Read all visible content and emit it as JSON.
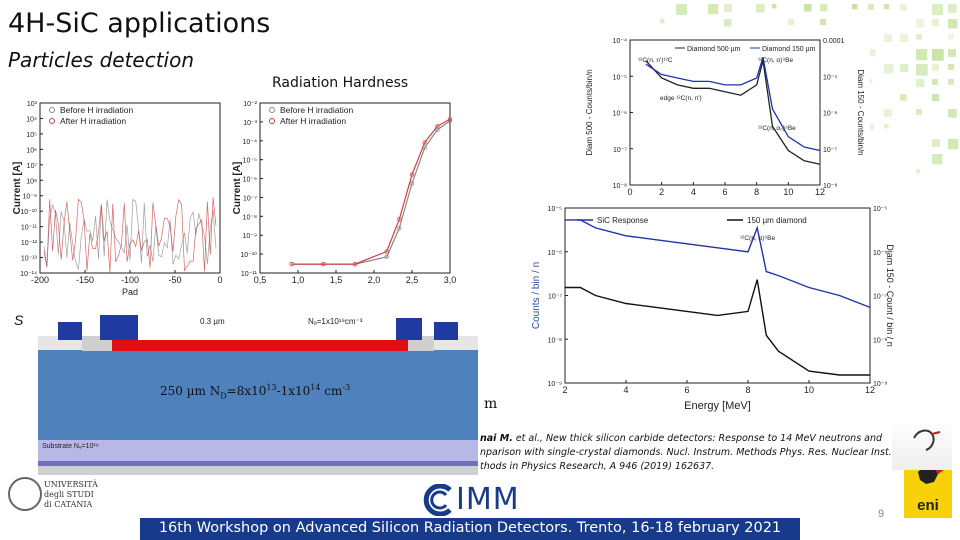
{
  "slide": {
    "title": "4H-SiC applications",
    "subtitle": "Particles detection",
    "radiation_label": "Radiation Hardness",
    "page_number": "9",
    "footer": "16th Workshop on Advanced Silicon Radiation Detectors. Trento, 16-18 february 2021",
    "s_fragment": "S",
    "m_fragment": "m",
    "reference_line1_author": "nai M.",
    "reference_line1_rest": " et al., New thick silicon carbide detectors: Response to 14 MeV neutrons and",
    "reference_line2": "nparison with single-crystal diamonds. Nucl. Instrum. Methods Phys. Res. Nuclear Inst. And",
    "reference_line3": "thods in Physics Research, A 946 (2019) 162637."
  },
  "device": {
    "epi_label": "250 µm N",
    "epi_sub": "D",
    "epi_mid": "=8x10",
    "epi_sup1": "13",
    "epi_dash": "-1x10",
    "epi_sup2": "14",
    "epi_unit": " cm",
    "epi_sup3": "-3",
    "thickness_label": "0.3 µm",
    "doping_label": "Nₐ=1x10¹⁹cm⁻³",
    "substrate_label": "Substrate Nₔ=10¹⁹"
  },
  "logos": {
    "unict_line1": "UNIVERSITÀ",
    "unict_line2": "degli STUDI",
    "unict_line3": "di CATANIA",
    "imm": "IMM",
    "eni": "eni"
  },
  "chart_data": [
    {
      "type": "line",
      "title": "",
      "xlabel": "Pad",
      "ylabel": "Current [A]",
      "xlim": [
        -220,
        0
      ],
      "ylog": true,
      "xticks": [
        "-200",
        "-150",
        "-100",
        "-50",
        "0"
      ],
      "yticks": [
        "10³",
        "10⁴",
        "10⁵",
        "10⁶",
        "10⁷",
        "10⁸",
        "10⁻⁹",
        "10⁻¹⁰",
        "10⁻¹¹",
        "10⁻¹²",
        "10⁻¹³",
        "10⁻¹⁴"
      ],
      "legend": [
        "Before H irradiation",
        "After H irradiation"
      ],
      "series": [
        {
          "name": "Before H irradiation",
          "color": "#888888"
        },
        {
          "name": "After H irradiation",
          "color": "#d04040"
        }
      ]
    },
    {
      "type": "line",
      "xlabel": "",
      "ylabel": "Current [A]",
      "xlim": [
        0,
        3.0
      ],
      "ylog": true,
      "xticks": [
        "0,5",
        "1,0",
        "1,5",
        "2,0",
        "2,5",
        "3,0"
      ],
      "yticks": [
        "10⁻²",
        "10⁻³",
        "10⁻⁴",
        "10⁻⁵",
        "10⁻⁶",
        "10⁻⁷",
        "10⁻⁸",
        "10⁻⁹",
        "10⁻¹⁰",
        "10⁻¹¹"
      ],
      "legend": [
        "Before H irradiation",
        "After H irradiation"
      ],
      "series": [
        {
          "name": "Before H irradiation",
          "color": "#888888",
          "x": [
            0.5,
            1.0,
            1.5,
            2.0,
            2.2,
            2.4,
            2.6,
            2.8,
            3.0
          ],
          "y": [
            -11,
            -11,
            -11,
            -10.6,
            -9,
            -6.5,
            -4.5,
            -3.5,
            -3
          ]
        },
        {
          "name": "After H irradiation",
          "color": "#d04040",
          "x": [
            0.5,
            1.0,
            1.5,
            2.0,
            2.2,
            2.4,
            2.6,
            2.8,
            3.0
          ],
          "y": [
            -11,
            -11,
            -11,
            -10.3,
            -8.5,
            -6,
            -4.2,
            -3.3,
            -2.9
          ]
        }
      ]
    },
    {
      "type": "line",
      "xlabel": "Energy [MeV]",
      "ylabel": "Diam 500 - Counts/bin/n",
      "ylabel_right": "Diam 150 - Counts/bin/n",
      "xlim": [
        0,
        12
      ],
      "ylog": true,
      "xticks": [
        "0",
        "2",
        "4",
        "6",
        "8",
        "10",
        "12"
      ],
      "yticks": [
        "10⁻⁴",
        "10⁻⁵",
        "10⁻⁶",
        "10⁻⁷",
        "10⁻⁸"
      ],
      "yticks_right": [
        "0.0001",
        "10⁻⁵",
        "10⁻⁶",
        "10⁻⁷",
        "10⁻⁸"
      ],
      "legend": [
        "Diamond 500 µm",
        "Diamond 150 µm"
      ],
      "annotations": [
        "¹²C(n, n')¹²C",
        "¹²C(n, α)⁹Be",
        "edge ¹²C(n, n')",
        "¹²C(n, α₀)⁹Be"
      ],
      "series": [
        {
          "name": "Diamond 500 µm",
          "color": "#222222",
          "x": [
            1,
            2,
            3,
            4,
            5,
            6,
            7,
            8,
            8.4,
            9,
            10,
            11,
            12
          ],
          "y": [
            -4.6,
            -5.1,
            -5.3,
            -5.4,
            -5.4,
            -5.5,
            -5.6,
            -5.3,
            -4.6,
            -6.5,
            -7.2,
            -7.5,
            -7.6
          ]
        },
        {
          "name": "Diamond 150 µm",
          "color": "#2233aa",
          "x": [
            1,
            2,
            3,
            4,
            5,
            6,
            7,
            8,
            8.4,
            9,
            10,
            11,
            12
          ],
          "y": [
            -4.7,
            -5.0,
            -5.1,
            -5.2,
            -5.2,
            -5.3,
            -5.3,
            -5.1,
            -4.5,
            -6.0,
            -6.8,
            -7.1,
            -7.2
          ]
        }
      ]
    },
    {
      "type": "line",
      "xlabel": "Energy [MeV]",
      "ylabel": "Counts / bin / n",
      "ylabel_right": "Diam 150 - Count / bin / n",
      "xlim": [
        2,
        12
      ],
      "ylog": true,
      "xticks": [
        "2",
        "4",
        "6",
        "8",
        "10",
        "12"
      ],
      "yticks": [
        "10⁻⁵",
        "10⁻⁶",
        "10⁻⁷",
        "10⁻⁸",
        "10⁻⁹"
      ],
      "yticks_right": [
        "10⁻⁵",
        "10⁻⁶",
        "10⁻⁷",
        "10⁻⁸",
        "10⁻⁹"
      ],
      "legend": [
        "SiC Response",
        "150 µm diamond"
      ],
      "annotations": [
        "¹²C(n, α)⁹Be"
      ],
      "series": [
        {
          "name": "SiC Response",
          "color": "#2233aa",
          "x": [
            2,
            2.5,
            3,
            4,
            5,
            6,
            7,
            8,
            8.3,
            8.6,
            9,
            10,
            11,
            12
          ],
          "y": [
            -5.1,
            -5.1,
            -5.3,
            -5.5,
            -5.6,
            -5.7,
            -5.8,
            -5.9,
            -5.3,
            -6.4,
            -6.5,
            -6.8,
            -7.0,
            -7.3
          ]
        },
        {
          "name": "150 µm diamond",
          "color": "#111111",
          "x": [
            2,
            2.5,
            3,
            4,
            5,
            6,
            7,
            8,
            8.3,
            8.6,
            9,
            10,
            11,
            12
          ],
          "y": [
            -6.8,
            -6.8,
            -7.0,
            -7.2,
            -7.3,
            -7.4,
            -7.5,
            -7.4,
            -6.6,
            -8.0,
            -8.4,
            -8.9,
            -9.0,
            -9.0
          ]
        }
      ]
    }
  ]
}
